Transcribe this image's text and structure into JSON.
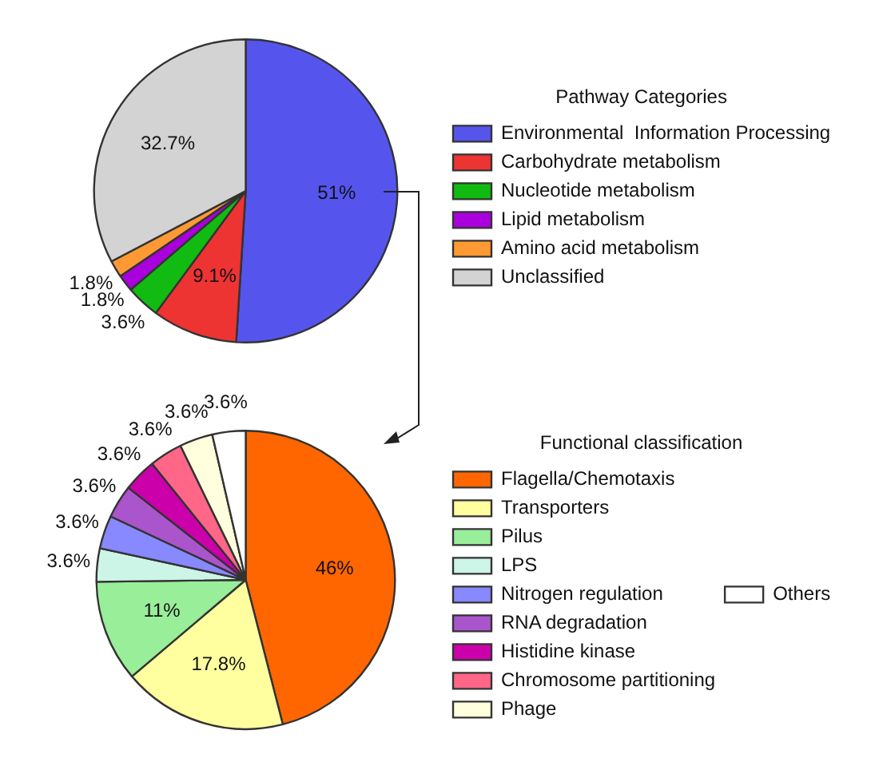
{
  "chart_data": [
    {
      "type": "pie",
      "legend_title": "Pathway Categories",
      "legend": "right",
      "categories": [
        "Environmental  Information Processing",
        "Carbohydrate metabolism",
        "Nucleotide metabolism",
        "Lipid metabolism",
        "Amino acid metabolism",
        "Unclassified"
      ],
      "values": [
        51,
        9.1,
        3.6,
        1.8,
        1.8,
        32.7
      ],
      "value_labels": [
        "51%",
        "9.1%",
        "3.6%",
        "1.8%",
        "1.8%",
        "32.7%"
      ],
      "colors": [
        "#5555ee",
        "#ee3333",
        "#11bb11",
        "#aa00dd",
        "#ff9933",
        "#d3d3d3"
      ]
    },
    {
      "type": "pie",
      "legend_title": "Functional classification",
      "legend": "right",
      "categories": [
        "Flagella/Chemotaxis",
        "Transporters",
        "Pilus",
        "LPS",
        "Nitrogen regulation",
        "RNA degradation",
        "Histidine kinase",
        "Chromosome partitioning",
        "Phage",
        "Others"
      ],
      "values": [
        46,
        17.8,
        11,
        3.6,
        3.6,
        3.6,
        3.6,
        3.6,
        3.6,
        3.6
      ],
      "value_labels": [
        "46%",
        "17.8%",
        "11%",
        "3.6%",
        "3.6%",
        "3.6%",
        "3.6%",
        "3.6%",
        "3.6%",
        "3.6%"
      ],
      "colors": [
        "#ff6600",
        "#ffffa0",
        "#99ee99",
        "#ccf5e8",
        "#8888ff",
        "#aa55cc",
        "#cc00aa",
        "#ff6688",
        "#ffffdd",
        "#ffffff"
      ]
    }
  ]
}
